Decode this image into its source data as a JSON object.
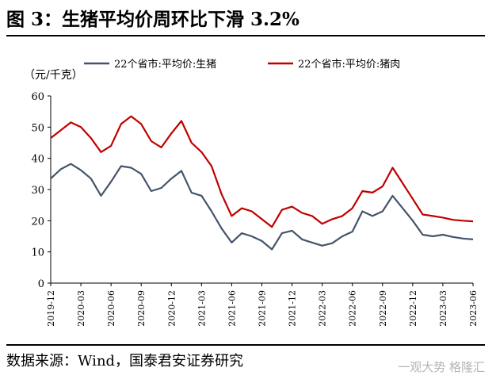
{
  "figure": {
    "title": "图 3：生猪平均价周环比下滑 3.2%",
    "source": "数据来源：Wind，国泰君安证券研究",
    "watermark": "一观大势 格隆汇"
  },
  "chart_data": {
    "type": "line",
    "unit_label": "（元/千克）",
    "ylim": [
      0,
      60
    ],
    "yticks": [
      0,
      10,
      20,
      30,
      40,
      50,
      60
    ],
    "x_range": [
      "2019-12",
      "2023-06"
    ],
    "xticks": [
      "2019-12",
      "2020-03",
      "2020-06",
      "2020-09",
      "2020-12",
      "2021-03",
      "2021-06",
      "2021-09",
      "2021-12",
      "2022-03",
      "2022-06",
      "2022-09",
      "2022-12",
      "2023-03",
      "2023-06"
    ],
    "grid": false,
    "legend_position": "top",
    "series": [
      {
        "name": "22个省市:平均价:生猪",
        "color": "#44546A",
        "points": [
          [
            "2019-12",
            33.5
          ],
          [
            "2020-01",
            36.5
          ],
          [
            "2020-02",
            38.2
          ],
          [
            "2020-03",
            36.2
          ],
          [
            "2020-04",
            33.5
          ],
          [
            "2020-05",
            28.0
          ],
          [
            "2020-06",
            32.5
          ],
          [
            "2020-07",
            37.5
          ],
          [
            "2020-08",
            37.0
          ],
          [
            "2020-09",
            35.0
          ],
          [
            "2020-10",
            29.5
          ],
          [
            "2020-11",
            30.5
          ],
          [
            "2020-12",
            33.5
          ],
          [
            "2021-01",
            36.0
          ],
          [
            "2021-02",
            29.0
          ],
          [
            "2021-03",
            28.0
          ],
          [
            "2021-04",
            23.0
          ],
          [
            "2021-05",
            17.5
          ],
          [
            "2021-06",
            13.0
          ],
          [
            "2021-07",
            16.0
          ],
          [
            "2021-08",
            15.0
          ],
          [
            "2021-09",
            13.5
          ],
          [
            "2021-10",
            10.8
          ],
          [
            "2021-11",
            16.0
          ],
          [
            "2021-12",
            16.8
          ],
          [
            "2022-01",
            14.0
          ],
          [
            "2022-02",
            13.0
          ],
          [
            "2022-03",
            12.0
          ],
          [
            "2022-04",
            12.8
          ],
          [
            "2022-05",
            15.0
          ],
          [
            "2022-06",
            16.5
          ],
          [
            "2022-07",
            23.0
          ],
          [
            "2022-08",
            21.5
          ],
          [
            "2022-09",
            23.0
          ],
          [
            "2022-10",
            28.0
          ],
          [
            "2022-11",
            24.0
          ],
          [
            "2022-12",
            20.0
          ],
          [
            "2023-01",
            15.5
          ],
          [
            "2023-02",
            15.0
          ],
          [
            "2023-03",
            15.5
          ],
          [
            "2023-04",
            14.8
          ],
          [
            "2023-05",
            14.3
          ],
          [
            "2023-06",
            14.0
          ]
        ]
      },
      {
        "name": "22个省市:平均价:猪肉",
        "color": "#C00000",
        "points": [
          [
            "2019-12",
            46.5
          ],
          [
            "2020-01",
            49.0
          ],
          [
            "2020-02",
            51.5
          ],
          [
            "2020-03",
            50.0
          ],
          [
            "2020-04",
            46.5
          ],
          [
            "2020-05",
            42.0
          ],
          [
            "2020-06",
            44.0
          ],
          [
            "2020-07",
            51.0
          ],
          [
            "2020-08",
            53.5
          ],
          [
            "2020-09",
            51.0
          ],
          [
            "2020-10",
            45.5
          ],
          [
            "2020-11",
            43.5
          ],
          [
            "2020-12",
            48.0
          ],
          [
            "2021-01",
            52.0
          ],
          [
            "2021-02",
            45.0
          ],
          [
            "2021-03",
            42.0
          ],
          [
            "2021-04",
            37.5
          ],
          [
            "2021-05",
            28.5
          ],
          [
            "2021-06",
            21.5
          ],
          [
            "2021-07",
            24.0
          ],
          [
            "2021-08",
            23.0
          ],
          [
            "2021-09",
            20.5
          ],
          [
            "2021-10",
            18.0
          ],
          [
            "2021-11",
            23.5
          ],
          [
            "2021-12",
            24.5
          ],
          [
            "2022-01",
            22.5
          ],
          [
            "2022-02",
            21.5
          ],
          [
            "2022-03",
            19.0
          ],
          [
            "2022-04",
            20.5
          ],
          [
            "2022-05",
            21.5
          ],
          [
            "2022-06",
            24.0
          ],
          [
            "2022-07",
            29.5
          ],
          [
            "2022-08",
            29.0
          ],
          [
            "2022-09",
            31.0
          ],
          [
            "2022-10",
            37.0
          ],
          [
            "2022-11",
            32.0
          ],
          [
            "2022-12",
            27.0
          ],
          [
            "2023-01",
            22.0
          ],
          [
            "2023-02",
            21.5
          ],
          [
            "2023-03",
            21.0
          ],
          [
            "2023-04",
            20.3
          ],
          [
            "2023-05",
            20.0
          ],
          [
            "2023-06",
            19.8
          ]
        ]
      }
    ]
  }
}
